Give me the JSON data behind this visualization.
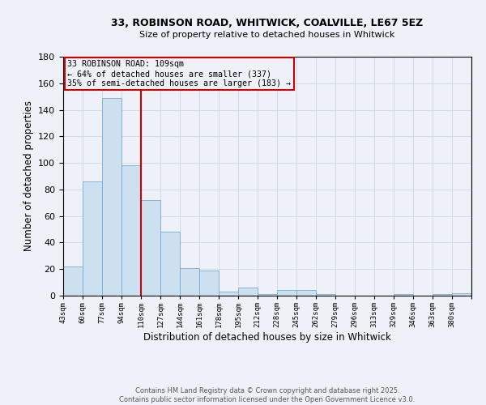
{
  "title": "33, ROBINSON ROAD, WHITWICK, COALVILLE, LE67 5EZ",
  "subtitle": "Size of property relative to detached houses in Whitwick",
  "xlabel": "Distribution of detached houses by size in Whitwick",
  "ylabel": "Number of detached properties",
  "footer_line1": "Contains HM Land Registry data © Crown copyright and database right 2025.",
  "footer_line2": "Contains public sector information licensed under the Open Government Licence v3.0.",
  "bins": [
    "43sqm",
    "60sqm",
    "77sqm",
    "94sqm",
    "110sqm",
    "127sqm",
    "144sqm",
    "161sqm",
    "178sqm",
    "195sqm",
    "212sqm",
    "228sqm",
    "245sqm",
    "262sqm",
    "279sqm",
    "296sqm",
    "313sqm",
    "329sqm",
    "346sqm",
    "363sqm",
    "380sqm"
  ],
  "bar_heights": [
    22,
    86,
    149,
    98,
    72,
    48,
    21,
    19,
    3,
    6,
    1,
    4,
    4,
    1,
    0,
    0,
    0,
    1,
    0,
    1,
    2
  ],
  "bar_color": "#cce0f0",
  "bar_edge_color": "#7aabcf",
  "vline_x_index": 4,
  "vline_color": "#cc0000",
  "annotation_text": "33 ROBINSON ROAD: 109sqm\n← 64% of detached houses are smaller (337)\n35% of semi-detached houses are larger (183) →",
  "annotation_box_color": "#cc0000",
  "ylim": [
    0,
    180
  ],
  "yticks": [
    0,
    20,
    40,
    60,
    80,
    100,
    120,
    140,
    160,
    180
  ],
  "grid_color": "#d0dce8",
  "background_color": "#eef2f8"
}
